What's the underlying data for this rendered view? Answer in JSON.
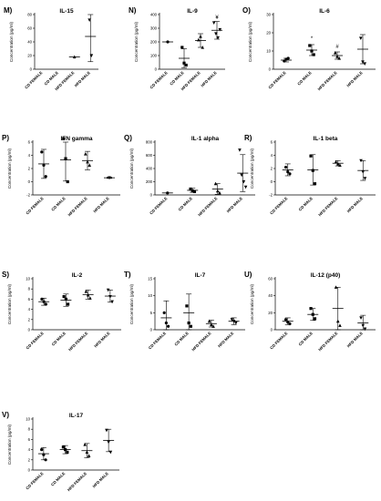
{
  "chart_data": [
    {
      "id": "M",
      "letter": "M)",
      "title": "IL-15",
      "type": "scatter",
      "ylabel": "Concentration (pg/ml)",
      "ylim": [
        0,
        80
      ],
      "yticks": [
        0,
        20,
        40,
        60,
        80
      ],
      "categories": [
        "CD FEMALE",
        "CD MALE",
        "HFD FEMALE",
        "HFD MALE"
      ],
      "series": [
        {
          "category": "CD FEMALE",
          "points": [],
          "mean": null,
          "sd": null,
          "marker": "circle"
        },
        {
          "category": "CD MALE",
          "points": [],
          "mean": null,
          "sd": null,
          "marker": "square"
        },
        {
          "category": "HFD FEMALE",
          "points": [
            18
          ],
          "mean": 18,
          "sd": 0,
          "marker": "triangle"
        },
        {
          "category": "HFD MALE",
          "points": [
            72,
            20
          ],
          "mean": 48,
          "sd": 37,
          "marker": "triangle-down"
        }
      ],
      "annotations": []
    },
    {
      "id": "N",
      "letter": "N)",
      "title": "IL-9",
      "type": "scatter",
      "ylabel": "Concentration (pg/ml)",
      "ylim": [
        0,
        400
      ],
      "yticks": [
        0,
        100,
        200,
        300,
        400
      ],
      "categories": [
        "CD FEMALE",
        "CD MALE",
        "HFD FEMALE",
        "HFD MALE"
      ],
      "series": [
        {
          "category": "CD FEMALE",
          "points": [
            200
          ],
          "mean": 200,
          "sd": 0,
          "marker": "circle"
        },
        {
          "category": "CD MALE",
          "points": [
            160,
            45,
            30
          ],
          "mean": 80,
          "sd": 70,
          "marker": "square"
        },
        {
          "category": "HFD FEMALE",
          "points": [
            215,
            240,
            160
          ],
          "mean": 210,
          "sd": 50,
          "marker": "triangle"
        },
        {
          "category": "HFD MALE",
          "points": [
            340,
            260,
            230,
            290
          ],
          "mean": 285,
          "sd": 65,
          "marker": "triangle-down"
        }
      ],
      "annotations": [
        {
          "category": "HFD MALE",
          "text": "¥",
          "y": 380
        }
      ]
    },
    {
      "id": "O",
      "letter": "O)",
      "title": "IL-6",
      "type": "scatter",
      "ylabel": "Concentration (pg/ml)",
      "ylim": [
        0,
        30
      ],
      "yticks": [
        0,
        10,
        20,
        30
      ],
      "categories": [
        "CD FEMALE",
        "CD MALE",
        "HFD FEMALE",
        "HFD MALE"
      ],
      "series": [
        {
          "category": "CD FEMALE",
          "points": [
            4.5,
            5.5,
            6
          ],
          "mean": 5,
          "sd": 1,
          "marker": "circle"
        },
        {
          "category": "CD MALE",
          "points": [
            13,
            10,
            8
          ],
          "mean": 10.5,
          "sd": 3,
          "marker": "square"
        },
        {
          "category": "HFD FEMALE",
          "points": [
            9,
            7,
            6
          ],
          "mean": 7.5,
          "sd": 2,
          "marker": "triangle"
        },
        {
          "category": "HFD MALE",
          "points": [
            17,
            4,
            3
          ],
          "mean": 11,
          "sd": 8,
          "marker": "triangle-down"
        }
      ],
      "annotations": [
        {
          "category": "CD MALE",
          "text": "*",
          "y": 17
        },
        {
          "category": "HFD FEMALE",
          "text": "#",
          "y": 12.5
        }
      ]
    },
    {
      "id": "P",
      "letter": "P)",
      "title": "IFN gamma",
      "type": "scatter",
      "ylabel": "Concentration (pg/ml)",
      "ylim": [
        -2,
        6
      ],
      "yticks": [
        -2,
        0,
        2,
        4,
        6
      ],
      "categories": [
        "CD FEMALE",
        "CD MALE",
        "HFD FEMALE",
        "HFD MALE"
      ],
      "series": [
        {
          "category": "CD FEMALE",
          "points": [
            4.5,
            2.5,
            0.8
          ],
          "mean": 2.7,
          "sd": 2.2,
          "marker": "circle"
        },
        {
          "category": "CD MALE",
          "points": [
            6.5,
            3.5,
            0
          ],
          "mean": 3.3,
          "sd": 3.2,
          "marker": "square"
        },
        {
          "category": "HFD FEMALE",
          "points": [
            4.2,
            3.0,
            2.5
          ],
          "mean": 3.2,
          "sd": 1.4,
          "marker": "triangle"
        },
        {
          "category": "HFD MALE",
          "points": [
            0.6
          ],
          "mean": 0.6,
          "sd": 0.1,
          "marker": "triangle-down"
        }
      ],
      "annotations": []
    },
    {
      "id": "Q",
      "letter": "Q)",
      "title": "IL-1 alpha",
      "type": "scatter",
      "ylabel": "Concentration (pg/ml)",
      "ylim": [
        0,
        800
      ],
      "yticks": [
        0,
        200,
        400,
        600,
        800
      ],
      "categories": [
        "CD FEMALE",
        "CD MALE",
        "HFD FEMALE",
        "HFD MALE"
      ],
      "series": [
        {
          "category": "CD FEMALE",
          "points": [
            30
          ],
          "mean": 30,
          "sd": 0,
          "marker": "circle"
        },
        {
          "category": "CD MALE",
          "points": [
            90,
            60,
            50
          ],
          "mean": 70,
          "sd": 30,
          "marker": "square"
        },
        {
          "category": "HFD FEMALE",
          "points": [
            170,
            60,
            30
          ],
          "mean": 90,
          "sd": 80,
          "marker": "triangle"
        },
        {
          "category": "HFD MALE",
          "points": [
            680,
            300,
            200,
            120
          ],
          "mean": 330,
          "sd": 280,
          "marker": "triangle-down"
        }
      ],
      "annotations": []
    },
    {
      "id": "R",
      "letter": "R)",
      "title": "IL-1 beta",
      "type": "scatter",
      "ylabel": "Concentration (pg/ml)",
      "ylim": [
        -2,
        6
      ],
      "yticks": [
        -2,
        0,
        2,
        4,
        6
      ],
      "categories": [
        "CD FEMALE",
        "CD MALE",
        "HFD FEMALE",
        "HFD MALE"
      ],
      "series": [
        {
          "category": "CD FEMALE",
          "points": [
            2.2,
            1.5,
            1.2
          ],
          "mean": 1.8,
          "sd": 0.9,
          "marker": "circle"
        },
        {
          "category": "CD MALE",
          "points": [
            3.9,
            1.7,
            -0.3
          ],
          "mean": 1.8,
          "sd": 2.3,
          "marker": "square"
        },
        {
          "category": "HFD FEMALE",
          "points": [
            3.0,
            2.7,
            2.5
          ],
          "mean": 2.8,
          "sd": 0.4,
          "marker": "triangle"
        },
        {
          "category": "HFD MALE",
          "points": [
            3.2,
            1.5,
            0.5
          ],
          "mean": 1.7,
          "sd": 1.5,
          "marker": "triangle-down"
        }
      ],
      "annotations": []
    },
    {
      "id": "S",
      "letter": "S)",
      "title": "IL-2",
      "type": "scatter",
      "ylabel": "Concentration (pg/ml)",
      "ylim": [
        0,
        10
      ],
      "yticks": [
        0,
        2,
        4,
        6,
        8,
        10
      ],
      "categories": [
        "CD FEMALE",
        "CD MALE",
        "HFD FEMALE",
        "HFD MALE"
      ],
      "series": [
        {
          "category": "CD FEMALE",
          "points": [
            6.0,
            5.5,
            5.0
          ],
          "mean": 5.5,
          "sd": 0.7,
          "marker": "circle"
        },
        {
          "category": "CD MALE",
          "points": [
            6.5,
            6.0,
            5.0
          ],
          "mean": 5.8,
          "sd": 1.2,
          "marker": "square"
        },
        {
          "category": "HFD FEMALE",
          "points": [
            7.5,
            6.8,
            6.2
          ],
          "mean": 6.9,
          "sd": 0.9,
          "marker": "triangle"
        },
        {
          "category": "HFD MALE",
          "points": [
            7.8,
            6.5,
            5.5
          ],
          "mean": 6.6,
          "sd": 1.2,
          "marker": "triangle-down"
        }
      ],
      "annotations": []
    },
    {
      "id": "T",
      "letter": "T)",
      "title": "IL-7",
      "type": "scatter",
      "ylabel": "Concentration (pg/ml)",
      "ylim": [
        0,
        15
      ],
      "yticks": [
        0,
        5,
        10,
        15
      ],
      "categories": [
        "CD FEMALE",
        "CD MALE",
        "HFD FEMALE",
        "HFD MALE"
      ],
      "series": [
        {
          "category": "CD FEMALE",
          "points": [
            5,
            2,
            1
          ],
          "mean": 3.5,
          "sd": 5,
          "marker": "circle"
        },
        {
          "category": "CD MALE",
          "points": [
            7,
            2,
            1
          ],
          "mean": 5,
          "sd": 5.5,
          "marker": "square"
        },
        {
          "category": "HFD FEMALE",
          "points": [
            2.5,
            1.5,
            1
          ],
          "mean": 1.8,
          "sd": 1,
          "marker": "triangle"
        },
        {
          "category": "HFD MALE",
          "points": [
            3,
            2.5,
            2
          ],
          "mean": 2.5,
          "sd": 1,
          "marker": "triangle-down"
        }
      ],
      "annotations": []
    },
    {
      "id": "U",
      "letter": "U)",
      "title": "IL-12 (p40)",
      "type": "scatter",
      "ylabel": "Concentration (pg/ml)",
      "ylim": [
        0,
        60
      ],
      "yticks": [
        0,
        20,
        40,
        60
      ],
      "categories": [
        "CD FEMALE",
        "CD MALE",
        "HFD FEMALE",
        "HFD MALE"
      ],
      "series": [
        {
          "category": "CD FEMALE",
          "points": [
            12,
            9,
            7
          ],
          "mean": 10,
          "sd": 4,
          "marker": "circle"
        },
        {
          "category": "CD MALE",
          "points": [
            25,
            18,
            13
          ],
          "mean": 18,
          "sd": 7,
          "marker": "square"
        },
        {
          "category": "HFD FEMALE",
          "points": [
            50,
            10,
            5
          ],
          "mean": 25,
          "sd": 25,
          "marker": "triangle"
        },
        {
          "category": "HFD MALE",
          "points": [
            14,
            5,
            1
          ],
          "mean": 8,
          "sd": 9,
          "marker": "triangle-down"
        }
      ],
      "annotations": []
    },
    {
      "id": "V",
      "letter": "V)",
      "title": "IL-17",
      "type": "scatter",
      "ylabel": "Concentration (pg/ml)",
      "ylim": [
        0,
        10
      ],
      "yticks": [
        0,
        2,
        4,
        6,
        8,
        10
      ],
      "categories": [
        "CD FEMALE",
        "CD MALE",
        "HFD FEMALE",
        "HFD MALE"
      ],
      "series": [
        {
          "category": "CD FEMALE",
          "points": [
            4.0,
            3.0,
            2.0
          ],
          "mean": 3.2,
          "sd": 1.2,
          "marker": "circle"
        },
        {
          "category": "CD MALE",
          "points": [
            4.5,
            4.0,
            3.5
          ],
          "mean": 4.0,
          "sd": 0.8,
          "marker": "square"
        },
        {
          "category": "HFD FEMALE",
          "points": [
            5.0,
            3.5,
            2.8
          ],
          "mean": 3.8,
          "sd": 1.4,
          "marker": "triangle"
        },
        {
          "category": "HFD MALE",
          "points": [
            7.8,
            5.5,
            3.5
          ],
          "mean": 5.8,
          "sd": 2.2,
          "marker": "triangle-down"
        }
      ],
      "annotations": []
    }
  ]
}
